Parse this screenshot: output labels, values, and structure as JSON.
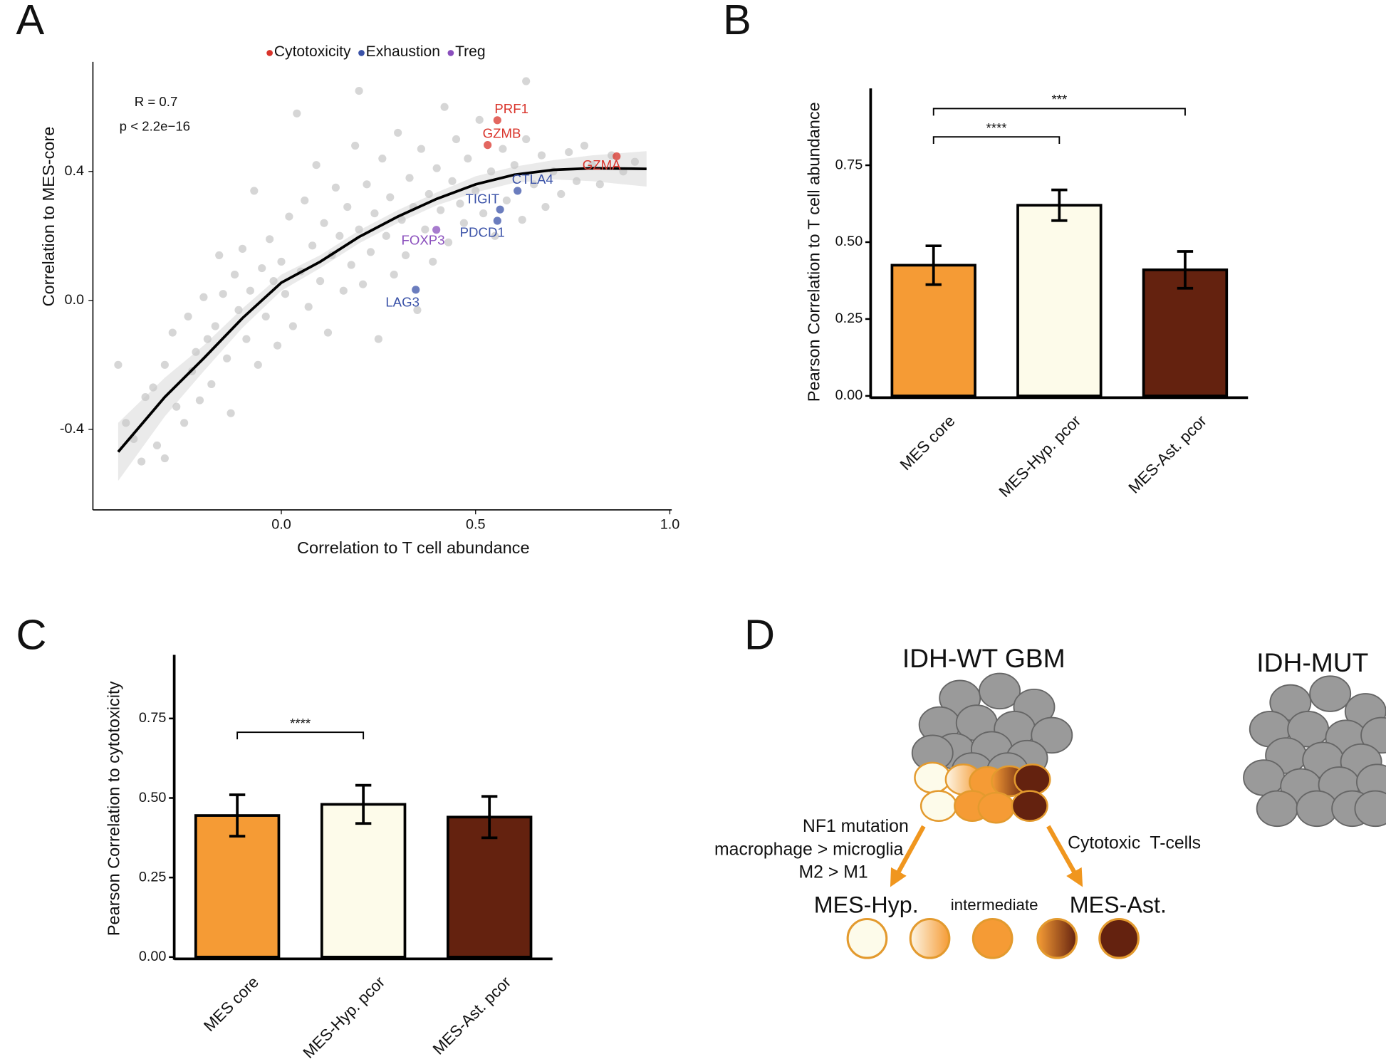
{
  "chart_data": [
    {
      "type": "scatter",
      "panel_label": "A",
      "x_label": "Correlation to T cell abundance",
      "y_label": "Correlation to MES-core",
      "annotations": [
        "R = 0.7",
        "p < 2.2e−16"
      ],
      "xlim": [
        -0.485,
        1.005
      ],
      "ylim": [
        -0.65,
        0.74
      ],
      "xticks": [
        {
          "value": 0,
          "label": "0.0"
        },
        0.5,
        {
          "value": 1,
          "label": "1.0"
        }
      ],
      "yticks": [
        -0.4,
        {
          "value": 0,
          "label": "0.0"
        },
        0.4
      ],
      "legend": "top",
      "series": [
        {
          "color": "#c4c4c4",
          "x": [
            -0.42,
            -0.4,
            -0.38,
            -0.36,
            -0.35,
            -0.33,
            -0.32,
            -0.3,
            -0.3,
            -0.28,
            -0.27,
            -0.25,
            -0.24,
            -0.23,
            -0.22,
            -0.21,
            -0.2,
            -0.19,
            -0.18,
            -0.17,
            -0.16,
            -0.15,
            -0.14,
            -0.13,
            -0.12,
            -0.11,
            -0.1,
            -0.09,
            -0.08,
            -0.07,
            -0.06,
            -0.05,
            -0.04,
            -0.03,
            -0.02,
            -0.01,
            0,
            0.01,
            0.02,
            0.03,
            0.04,
            0.05,
            0.06,
            0.07,
            0.08,
            0.09,
            0.1,
            0.11,
            0.12,
            0.13,
            0.14,
            0.15,
            0.16,
            0.17,
            0.18,
            0.19,
            0.2,
            0.21,
            0.22,
            0.23,
            0.24,
            0.25,
            0.26,
            0.27,
            0.28,
            0.29,
            0.3,
            0.31,
            0.32,
            0.33,
            0.34,
            0.35,
            0.36,
            0.37,
            0.38,
            0.39,
            0.4,
            0.41,
            0.42,
            0.43,
            0.44,
            0.45,
            0.46,
            0.47,
            0.48,
            0.5,
            0.51,
            0.52,
            0.54,
            0.55,
            0.57,
            0.58,
            0.6,
            0.62,
            0.63,
            0.65,
            0.67,
            0.68,
            0.7,
            0.72,
            0.74,
            0.76,
            0.78,
            0.8,
            0.82,
            0.85,
            0.88,
            0.91,
            0.63,
            0.2
          ],
          "values": [
            -0.2,
            -0.38,
            -0.43,
            -0.5,
            -0.3,
            -0.27,
            -0.45,
            -0.49,
            -0.2,
            -0.1,
            -0.33,
            -0.38,
            -0.05,
            -0.22,
            -0.16,
            -0.31,
            0.01,
            -0.12,
            -0.26,
            -0.08,
            0.14,
            0.02,
            -0.18,
            -0.35,
            0.08,
            -0.03,
            0.16,
            -0.12,
            0.03,
            0.34,
            -0.2,
            0.1,
            -0.05,
            0.19,
            0.06,
            -0.14,
            0.12,
            0.02,
            0.26,
            -0.08,
            0.58,
            0.09,
            0.31,
            -0.02,
            0.17,
            0.42,
            0.06,
            0.24,
            -0.1,
            0.14,
            0.35,
            0.2,
            0.03,
            0.29,
            0.11,
            0.48,
            0.22,
            0.05,
            0.36,
            0.15,
            0.27,
            -0.12,
            0.44,
            0.2,
            0.32,
            0.08,
            0.52,
            0.25,
            0.14,
            0.38,
            0.29,
            -0.03,
            0.47,
            0.22,
            0.33,
            0.12,
            0.41,
            0.28,
            0.6,
            0.18,
            0.37,
            0.5,
            0.3,
            0.24,
            0.44,
            0.34,
            0.56,
            0.27,
            0.4,
            0.2,
            0.47,
            0.31,
            0.42,
            0.25,
            0.5,
            0.36,
            0.45,
            0.29,
            0.4,
            0.33,
            0.46,
            0.37,
            0.48,
            0.42,
            0.36,
            0.45,
            0.4,
            0.43,
            0.68,
            0.65
          ]
        },
        {
          "name": "Cytotoxicity",
          "color": "#d9342b",
          "x": [
            0.556,
            0.531,
            0.863
          ],
          "values": [
            0.559,
            0.482,
            0.447
          ],
          "point_labels": [
            "PRF1",
            "GZMB",
            "GZMA"
          ]
        },
        {
          "name": "Exhaustion",
          "color": "#3a52a8",
          "x": [
            0.608,
            0.563,
            0.556,
            0.346
          ],
          "values": [
            0.34,
            0.282,
            0.247,
            0.033
          ],
          "point_labels": [
            "CTLA4",
            "TIGIT",
            "PDCD1",
            "LAG3"
          ]
        },
        {
          "name": "Treg",
          "color": "#8a4fbd",
          "x": [
            0.399
          ],
          "values": [
            0.219
          ],
          "point_labels": [
            "FOXP3"
          ]
        }
      ],
      "fit": {
        "color": "#000000",
        "x": [
          -0.42,
          -0.3,
          -0.2,
          -0.1,
          0,
          0.1,
          0.2,
          0.3,
          0.4,
          0.5,
          0.6,
          0.7,
          0.8,
          0.94
        ],
        "values": [
          -0.47,
          -0.3,
          -0.18,
          -0.055,
          0.055,
          0.12,
          0.197,
          0.26,
          0.315,
          0.36,
          0.39,
          0.405,
          0.41,
          0.408
        ],
        "lower": [
          -0.56,
          -0.36,
          -0.22,
          -0.085,
          0.03,
          0.1,
          0.177,
          0.24,
          0.295,
          0.335,
          0.365,
          0.375,
          0.37,
          0.353
        ],
        "upper": [
          -0.38,
          -0.24,
          -0.14,
          -0.025,
          0.08,
          0.14,
          0.217,
          0.28,
          0.335,
          0.385,
          0.415,
          0.435,
          0.45,
          0.463
        ]
      }
    },
    {
      "type": "bar",
      "panel_label": "B",
      "y_label": "Pearson Correlation to T cell abundance",
      "categories": [
        "MES core",
        "MES-Hyp. pcor",
        "MES-Ast. pcor"
      ],
      "values": [
        0.425,
        0.62,
        0.41
      ],
      "errors": [
        0.063,
        0.05,
        0.06
      ],
      "colors": [
        "#f59b35",
        "#fdfbea",
        "#64220f"
      ],
      "ylim": [
        0,
        1.0
      ],
      "yticks": [
        {
          "value": 0,
          "label": "0.00"
        },
        {
          "value": 0.25,
          "label": "0.25"
        },
        {
          "value": 0.5,
          "label": "0.50"
        },
        {
          "value": 0.75,
          "label": "0.75"
        }
      ],
      "significance": [
        {
          "from": 0,
          "to": 1,
          "label": "****"
        },
        {
          "from": 0,
          "to": 2,
          "label": "***"
        }
      ]
    },
    {
      "type": "bar",
      "panel_label": "C",
      "y_label": "Pearson Correlation to cytotoxicity",
      "categories": [
        "MES core",
        "MES-Hyp. pcor",
        "MES-Ast. pcor"
      ],
      "values": [
        0.445,
        0.48,
        0.44
      ],
      "errors": [
        0.065,
        0.06,
        0.065
      ],
      "colors": [
        "#f59b35",
        "#fdfbea",
        "#64220f"
      ],
      "ylim": [
        0,
        0.95
      ],
      "yticks": [
        {
          "value": 0,
          "label": "0.00"
        },
        {
          "value": 0.25,
          "label": "0.25"
        },
        {
          "value": 0.5,
          "label": "0.50"
        },
        {
          "value": 0.75,
          "label": "0.75"
        }
      ],
      "significance": [
        {
          "from": 0,
          "to": 1,
          "label": "****"
        }
      ]
    }
  ],
  "diagram": {
    "panel_label": "D",
    "groups": [
      "IDH-WT GBM",
      "IDH-MUT"
    ],
    "left_arrow": [
      "NF1 mutation",
      "macrophage > microglia",
      "M2 > M1"
    ],
    "right_arrow": "Cytotoxic  T-cells",
    "states": [
      "MES-Hyp.",
      "intermediate",
      "MES-Ast."
    ]
  }
}
